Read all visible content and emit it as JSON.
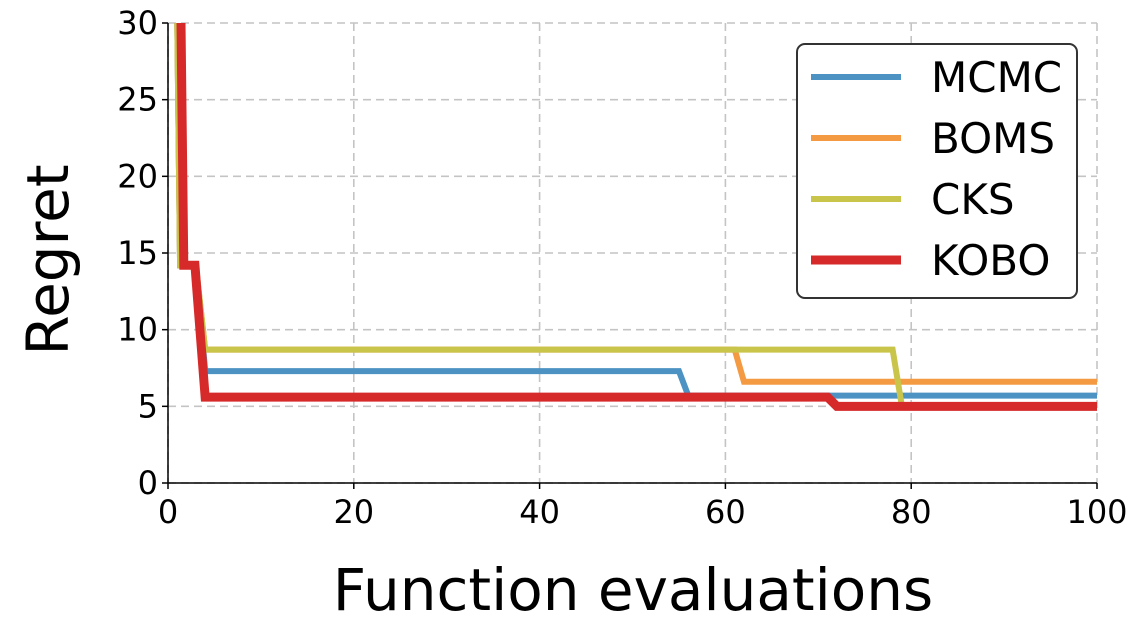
{
  "chart_data": {
    "type": "line",
    "xlabel": "Function evaluations",
    "ylabel": "Regret",
    "xlim": [
      0,
      100
    ],
    "ylim": [
      0,
      30
    ],
    "xticks": [
      0,
      20,
      40,
      60,
      80,
      100
    ],
    "yticks": [
      0,
      5,
      10,
      15,
      20,
      25,
      30
    ],
    "xtick_labels": [
      "0",
      "20",
      "40",
      "60",
      "80",
      "100"
    ],
    "ytick_labels": [
      "0",
      "5",
      "10",
      "15",
      "20",
      "25",
      "30"
    ],
    "grid": true,
    "legend_position": "top-right",
    "series": [
      {
        "name": "MCMC",
        "color": "#4c93c3",
        "x": [
          1,
          1.3,
          2,
          3,
          4,
          55,
          56,
          100
        ],
        "y": [
          30,
          14.2,
          14.2,
          14.2,
          7.3,
          7.3,
          5.7,
          5.7
        ]
      },
      {
        "name": "BOMS",
        "color": "#f39a42",
        "x": [
          1,
          1.3,
          2,
          3,
          4,
          61,
          62,
          100
        ],
        "y": [
          30,
          14.2,
          14.2,
          14.2,
          8.7,
          8.7,
          6.6,
          6.6
        ]
      },
      {
        "name": "CKS",
        "color": "#c9c44a",
        "x": [
          1,
          1.3,
          2,
          3,
          4,
          78,
          79,
          100
        ],
        "y": [
          30,
          14.2,
          14.2,
          14.2,
          8.7,
          8.7,
          5.0,
          5.0
        ]
      },
      {
        "name": "KOBO",
        "color": "#d62a2a",
        "x": [
          1.4,
          1.7,
          2.9,
          4,
          71,
          72,
          100
        ],
        "y": [
          30,
          14.2,
          14.2,
          5.6,
          5.6,
          5.0,
          5.0
        ]
      }
    ]
  }
}
